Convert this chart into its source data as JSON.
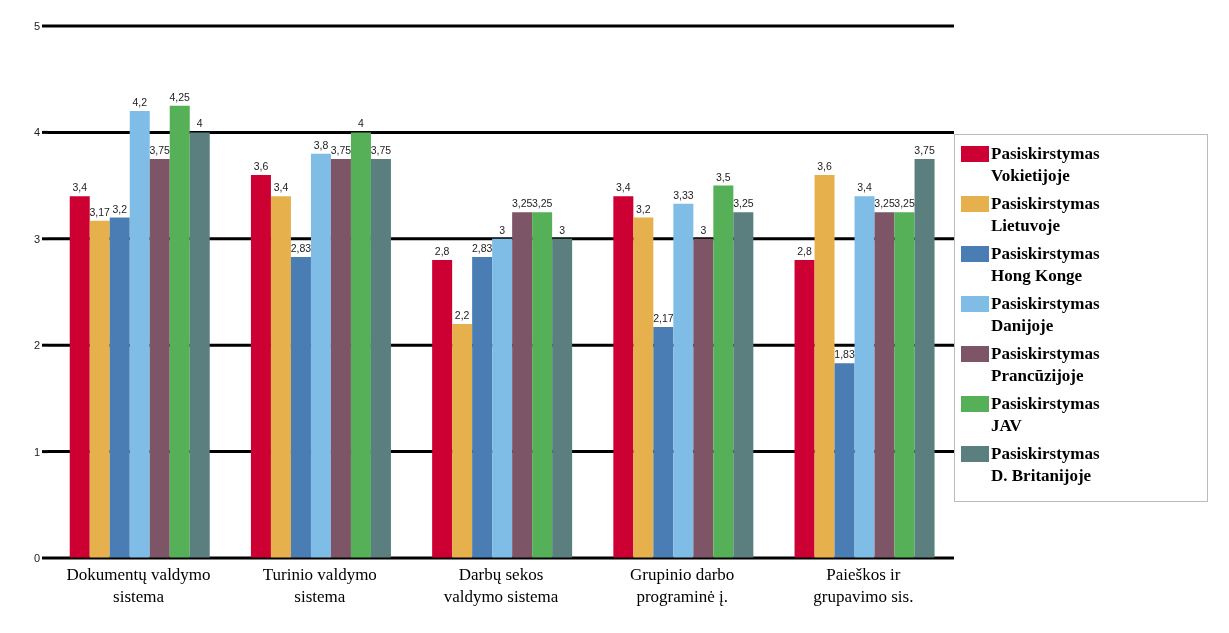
{
  "chart_data": {
    "type": "bar",
    "categories": [
      "Dokumentų valdymo sistema",
      "Turinio valdymo sistema",
      "Darbų sekos valdymo sistema",
      "Grupinio darbo programinė į.",
      "Paieškos ir grupavimo sis."
    ],
    "series": [
      {
        "name": "Pasiskirstymas Vokietijoje",
        "color": "#cc0033",
        "values": [
          3.4,
          3.6,
          2.8,
          3.4,
          2.8
        ],
        "value_labels": [
          "3,4",
          "3,6",
          "2,8",
          "3,4",
          "2,8"
        ]
      },
      {
        "name": "Pasiskirstymas Lietuvoje",
        "color": "#e6b04c",
        "values": [
          3.17,
          3.4,
          2.2,
          3.2,
          3.6
        ],
        "value_labels": [
          "3,17",
          "3,4",
          "2,2",
          "3,2",
          "3,6"
        ]
      },
      {
        "name": "Pasiskirstymas Hong Konge",
        "color": "#4a7db3",
        "values": [
          3.2,
          2.83,
          2.83,
          2.17,
          1.83
        ],
        "value_labels": [
          "3,2",
          "2,83",
          "2,83",
          "2,17",
          "1,83"
        ]
      },
      {
        "name": "Pasiskirstymas Danijoje",
        "color": "#7fbde6",
        "values": [
          4.2,
          3.8,
          3,
          3.33,
          3.4
        ],
        "value_labels": [
          "4,2",
          "3,8",
          "3",
          "3,33",
          "3,4"
        ]
      },
      {
        "name": "Pasiskirstymas Prancūzijoje",
        "color": "#7d5566",
        "values": [
          3.75,
          3.75,
          3.25,
          3,
          3.25
        ],
        "value_labels": [
          "3,75",
          "3,75",
          "3,25",
          "3",
          "3,25"
        ]
      },
      {
        "name": "Pasiskirstymas JAV",
        "color": "#56b057",
        "values": [
          4.25,
          4,
          3.25,
          3.5,
          3.25
        ],
        "value_labels": [
          "4,25",
          "4",
          "3,25",
          "3,5",
          "3,25"
        ]
      },
      {
        "name": "Pasiskirstymas D. Britanijoje",
        "color": "#5a7f7e",
        "values": [
          4,
          3.75,
          3,
          3.25,
          3.75
        ],
        "value_labels": [
          "4",
          "3,75",
          "3",
          "3,25",
          "3,75"
        ]
      }
    ],
    "ylim": [
      0,
      5
    ],
    "yticks": [
      0,
      1,
      2,
      3,
      4,
      5
    ],
    "grid": "y",
    "legend": "right"
  }
}
